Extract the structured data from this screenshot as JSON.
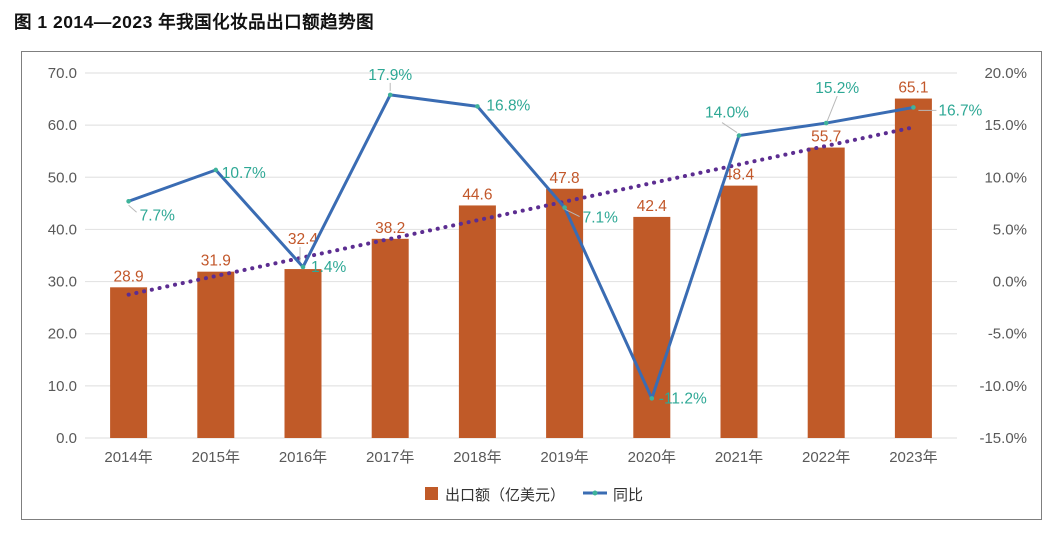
{
  "page": {
    "title": "图 1 2014—2023 年我国化妆品出口额趋势图"
  },
  "chart_data": {
    "type": "bar+line",
    "title": "图 1 2014—2023 年我国化妆品出口额趋势图",
    "categories": [
      "2014年",
      "2015年",
      "2016年",
      "2017年",
      "2018年",
      "2019年",
      "2020年",
      "2021年",
      "2022年",
      "2023年"
    ],
    "series": [
      {
        "name": "出口额（亿美元）",
        "type": "bar",
        "axis": "left",
        "values": [
          28.9,
          31.9,
          32.4,
          38.2,
          44.6,
          47.8,
          42.4,
          48.4,
          55.7,
          65.1
        ],
        "labels": [
          "28.9",
          "31.9",
          "32.4",
          "38.2",
          "44.6",
          "47.8",
          "42.4",
          "48.4",
          "55.7",
          "65.1"
        ]
      },
      {
        "name": "同比",
        "type": "line",
        "axis": "right",
        "values": [
          7.7,
          10.7,
          1.4,
          17.9,
          16.8,
          7.1,
          -11.2,
          14.0,
          15.2,
          16.7
        ],
        "labels": [
          "7.7%",
          "10.7%",
          "1.4%",
          "17.9%",
          "16.8%",
          "7.1%",
          "-11.2%",
          "14.0%",
          "15.2%",
          "16.7%"
        ]
      },
      {
        "name": "线性趋势线",
        "type": "dotted-linear-trend-of-bar-series",
        "axis": "left"
      }
    ],
    "axis_left": {
      "min": 0,
      "max": 70,
      "ticks": [
        "70.0",
        "60.0",
        "50.0",
        "40.0",
        "30.0",
        "20.0",
        "10.0",
        "0.0"
      ]
    },
    "axis_right": {
      "min": -15,
      "max": 20,
      "ticks": [
        "20.0%",
        "15.0%",
        "10.0%",
        "5.0%",
        "0.0%",
        "-5.0%",
        "-10.0%",
        "-15.0%"
      ]
    },
    "legend": {
      "position": "bottom-center",
      "items": [
        {
          "label": "出口额（亿美元）",
          "marker": "square"
        },
        {
          "label": "同比",
          "marker": "line-dot"
        }
      ]
    },
    "grid": "horizontal-only",
    "colors": {
      "bar": "#c05a28",
      "bar_label": "#c2572a",
      "line": "#3a6cb3",
      "marker": "#3fb39b",
      "growth_label": "#2ea895",
      "trend": "#5c2d91",
      "grid": "#e4e4e4",
      "axis_text": "#595959",
      "leader": "#b9b9b9",
      "legend_text": "#333333"
    }
  }
}
